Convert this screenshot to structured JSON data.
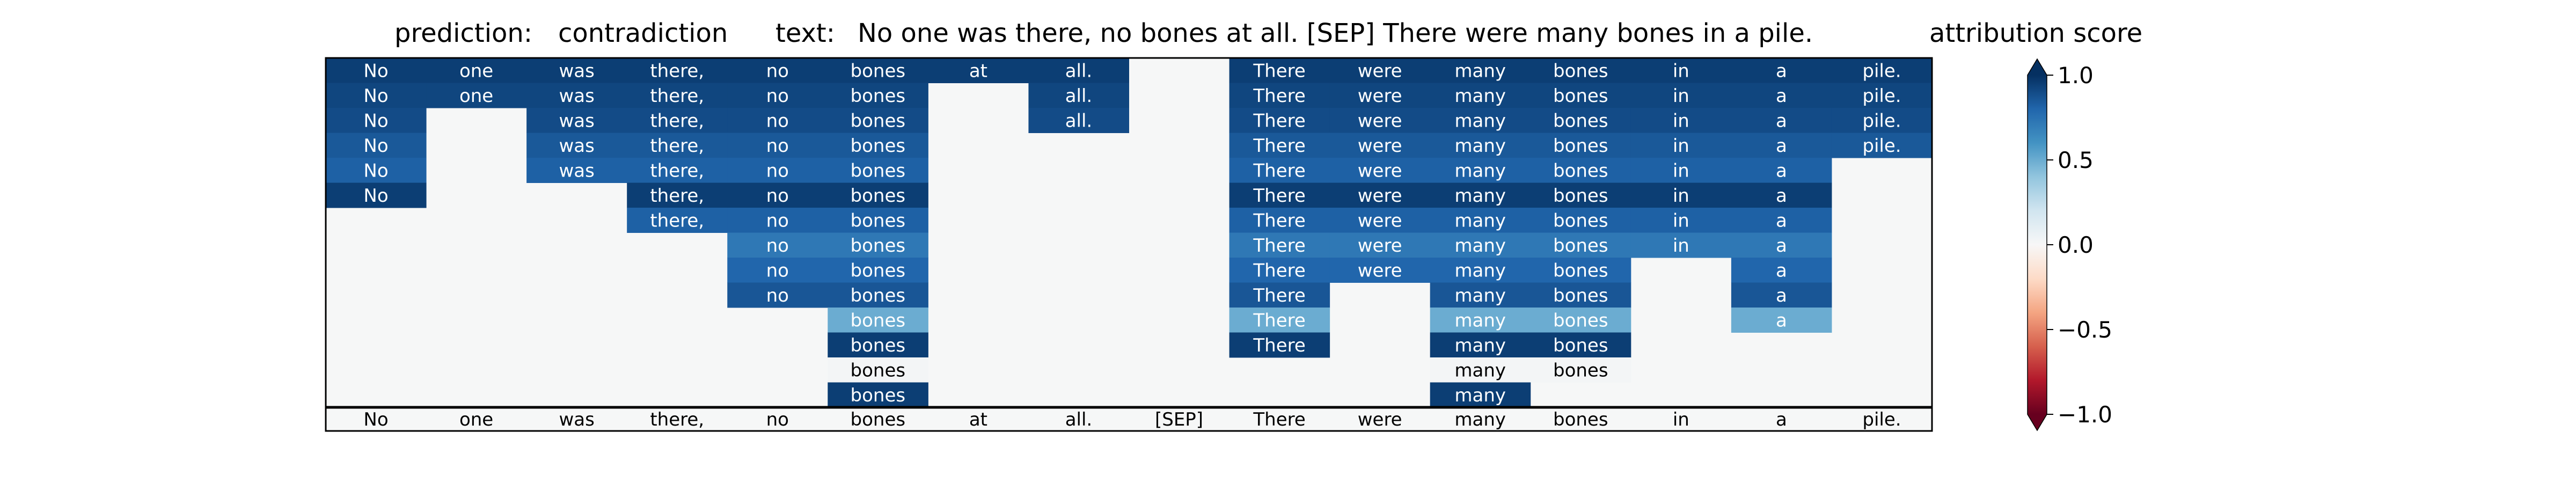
{
  "chart_data": {
    "type": "heatmap",
    "prediction_label": "prediction:",
    "prediction": "contradiction",
    "text_label": "text:",
    "text": "No one was there, no bones at all. [SEP] There were many bones in a pile.",
    "colorbar_title": "attribution score",
    "tokens": [
      "No",
      "one",
      "was",
      "there,",
      "no",
      "bones",
      "at",
      "all.",
      "[SEP]",
      "There",
      "were",
      "many",
      "bones",
      "in",
      "a",
      "pile."
    ],
    "colorbar": {
      "vmin": -1.0,
      "vmax": 1.0,
      "colormap": "RdBu",
      "extend": "both",
      "ticks": [
        1.0,
        0.5,
        0.0,
        -0.5,
        -1.0
      ],
      "tick_labels": [
        "1.0",
        "0.5",
        "0.0",
        "−0.5",
        "−1.0"
      ]
    },
    "rows": [
      {
        "tokens": [
          "No",
          "one",
          "was",
          "there,",
          "no",
          "bones",
          "at",
          "all.",
          null,
          "There",
          "were",
          "many",
          "bones",
          "in",
          "a",
          "pile."
        ],
        "values": [
          0.95,
          0.95,
          0.95,
          0.95,
          0.95,
          0.95,
          0.95,
          0.95,
          0,
          0.95,
          0.95,
          0.95,
          0.95,
          0.95,
          0.95,
          0.95
        ]
      },
      {
        "tokens": [
          "No",
          "one",
          "was",
          "there,",
          "no",
          "bones",
          null,
          "all.",
          null,
          "There",
          "were",
          "many",
          "bones",
          "in",
          "a",
          "pile."
        ],
        "values": [
          0.92,
          0.92,
          0.92,
          0.92,
          0.92,
          0.92,
          0,
          0.92,
          0,
          0.92,
          0.92,
          0.92,
          0.92,
          0.92,
          0.92,
          0.92
        ]
      },
      {
        "tokens": [
          "No",
          null,
          "was",
          "there,",
          "no",
          "bones",
          null,
          "all.",
          null,
          "There",
          "were",
          "many",
          "bones",
          "in",
          "a",
          "pile."
        ],
        "values": [
          0.9,
          0,
          0.9,
          0.9,
          0.9,
          0.9,
          0,
          0.9,
          0,
          0.9,
          0.9,
          0.9,
          0.9,
          0.9,
          0.9,
          0.9
        ]
      },
      {
        "tokens": [
          "No",
          null,
          "was",
          "there,",
          "no",
          "bones",
          null,
          null,
          null,
          "There",
          "were",
          "many",
          "bones",
          "in",
          "a",
          "pile."
        ],
        "values": [
          0.85,
          0,
          0.85,
          0.85,
          0.85,
          0.85,
          0,
          0,
          0,
          0.85,
          0.85,
          0.85,
          0.85,
          0.85,
          0.85,
          0.85
        ]
      },
      {
        "tokens": [
          "No",
          null,
          "was",
          "there,",
          "no",
          "bones",
          null,
          null,
          null,
          "There",
          "were",
          "many",
          "bones",
          "in",
          "a",
          null
        ],
        "values": [
          0.82,
          0,
          0.82,
          0.82,
          0.82,
          0.82,
          0,
          0,
          0,
          0.82,
          0.82,
          0.82,
          0.82,
          0.82,
          0.82,
          0
        ]
      },
      {
        "tokens": [
          "No",
          null,
          null,
          "there,",
          "no",
          "bones",
          null,
          null,
          null,
          "There",
          "were",
          "many",
          "bones",
          "in",
          "a",
          null
        ],
        "values": [
          0.95,
          0,
          0,
          0.95,
          0.95,
          0.95,
          0,
          0,
          0,
          0.95,
          0.95,
          0.95,
          0.95,
          0.95,
          0.95,
          0
        ]
      },
      {
        "tokens": [
          null,
          null,
          null,
          "there,",
          "no",
          "bones",
          null,
          null,
          null,
          "There",
          "were",
          "many",
          "bones",
          "in",
          "a",
          null
        ],
        "values": [
          0,
          0,
          0,
          0.82,
          0.82,
          0.82,
          0,
          0,
          0,
          0.82,
          0.82,
          0.82,
          0.82,
          0.82,
          0.82,
          0
        ]
      },
      {
        "tokens": [
          null,
          null,
          null,
          null,
          "no",
          "bones",
          null,
          null,
          null,
          "There",
          "were",
          "many",
          "bones",
          "in",
          "a",
          null
        ],
        "values": [
          0,
          0,
          0,
          0,
          0.72,
          0.72,
          0,
          0,
          0,
          0.72,
          0.72,
          0.72,
          0.72,
          0.72,
          0.72,
          0
        ]
      },
      {
        "tokens": [
          null,
          null,
          null,
          null,
          "no",
          "bones",
          null,
          null,
          null,
          "There",
          "were",
          "many",
          "bones",
          null,
          "a",
          null
        ],
        "values": [
          0,
          0,
          0,
          0,
          0.8,
          0.8,
          0,
          0,
          0,
          0.8,
          0.8,
          0.8,
          0.8,
          0,
          0.8,
          0
        ]
      },
      {
        "tokens": [
          null,
          null,
          null,
          null,
          "no",
          "bones",
          null,
          null,
          null,
          "There",
          null,
          "many",
          "bones",
          null,
          "a",
          null
        ],
        "values": [
          0,
          0,
          0,
          0,
          0.86,
          0.86,
          0,
          0,
          0,
          0.86,
          0,
          0.86,
          0.86,
          0,
          0.86,
          0
        ]
      },
      {
        "tokens": [
          null,
          null,
          null,
          null,
          null,
          "bones",
          null,
          null,
          null,
          "There",
          null,
          "many",
          "bones",
          null,
          "a",
          null
        ],
        "values": [
          0,
          0,
          0,
          0,
          0,
          0.5,
          0,
          0,
          0,
          0.5,
          0,
          0.5,
          0.5,
          0,
          0.5,
          0
        ]
      },
      {
        "tokens": [
          null,
          null,
          null,
          null,
          null,
          "bones",
          null,
          null,
          null,
          "There",
          null,
          "many",
          "bones",
          null,
          null,
          null
        ],
        "values": [
          0,
          0,
          0,
          0,
          0,
          0.95,
          0,
          0,
          0,
          0.95,
          0,
          0.95,
          0.95,
          0,
          0,
          0
        ]
      },
      {
        "tokens": [
          null,
          null,
          null,
          null,
          null,
          "bones",
          null,
          null,
          null,
          null,
          null,
          "many",
          "bones",
          null,
          null,
          null
        ],
        "values": [
          0,
          0,
          0,
          0,
          0,
          0.02,
          0,
          0,
          0,
          0,
          0,
          0.02,
          0.02,
          0,
          0,
          0
        ]
      },
      {
        "tokens": [
          null,
          null,
          null,
          null,
          null,
          "bones",
          null,
          null,
          null,
          null,
          null,
          "many",
          null,
          null,
          null,
          null
        ],
        "values": [
          0,
          0,
          0,
          0,
          0,
          0.95,
          0,
          0,
          0,
          0,
          0,
          0.95,
          0,
          0,
          0,
          0
        ]
      }
    ]
  }
}
